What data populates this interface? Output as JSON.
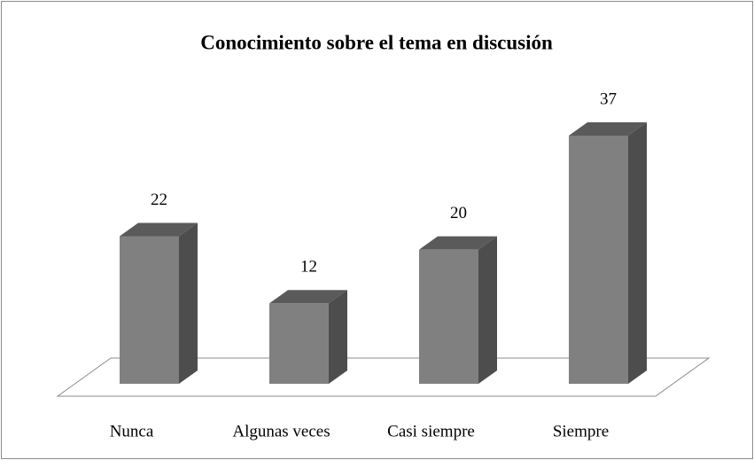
{
  "chart_data": {
    "type": "bar3d",
    "title": "Conocimiento sobre el tema en discusión",
    "categories": [
      "Nunca",
      "Algunas veces",
      "Casi siempre",
      "Siempre"
    ],
    "values": [
      22,
      12,
      20,
      37
    ],
    "color": "#808080"
  }
}
